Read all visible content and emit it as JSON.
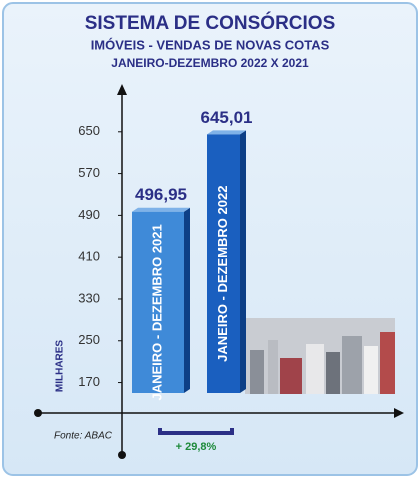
{
  "chart_data": {
    "type": "bar",
    "title": "SISTEMA DE CONSÓRCIOS",
    "subtitle": "IMÓVEIS - VENDAS DE NOVAS COTAS",
    "period": "JANEIRO-DEZEMBRO 2022 X 2021",
    "y_label": "MILHARES",
    "source": "Fonte: ABAC",
    "annotation": "+ 29,8%",
    "categories": [
      "JANEIRO - DEZEMBRO 2021",
      "JANEIRO - DEZEMBRO 2022"
    ],
    "values": [
      496.95,
      645.01
    ],
    "value_labels": [
      "496,95",
      "645,01"
    ],
    "colors": [
      "#3f8ad8",
      "#1a5fbf"
    ],
    "ylim": [
      150,
      730
    ],
    "yticks": [
      170,
      250,
      330,
      410,
      490,
      570,
      650
    ]
  }
}
